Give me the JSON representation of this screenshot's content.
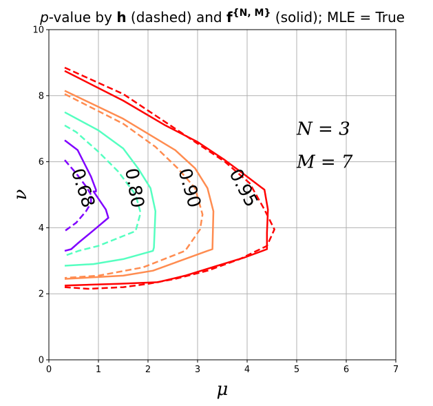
{
  "chart_data": {
    "type": "line",
    "title": {
      "p": "p",
      "middle1": "-value by ",
      "h": "h",
      "middle2": " (dashed) and ",
      "f": "f",
      "sup": "{N, M}",
      "end": " (solid); MLE = True"
    },
    "xlabel": "μ",
    "ylabel": "ν",
    "xlim": [
      0,
      7
    ],
    "ylim": [
      0,
      10
    ],
    "xticks": [
      "0",
      "1",
      "2",
      "3",
      "4",
      "5",
      "6",
      "7"
    ],
    "yticks": [
      "0",
      "2",
      "4",
      "6",
      "8",
      "10"
    ],
    "grid": true,
    "annotations": [
      {
        "text": "N = 3",
        "x": 5.0,
        "y": 7.0
      },
      {
        "text": "M = 7",
        "x": 5.0,
        "y": 6.0
      }
    ],
    "contour_labels": [
      {
        "text": "0.68",
        "x": 0.68,
        "y": 5.2,
        "rot": 72,
        "color": "#8000ff"
      },
      {
        "text": "0.80",
        "x": 1.72,
        "y": 5.2,
        "rot": 80,
        "color": "#55ffc0"
      },
      {
        "text": "0.90",
        "x": 2.83,
        "y": 5.2,
        "rot": 74,
        "color": "#ff8c50"
      },
      {
        "text": "0.95",
        "x": 3.92,
        "y": 5.2,
        "rot": 62,
        "color": "#ff0000"
      }
    ],
    "series": [
      {
        "level": "0.68",
        "style": "solid",
        "color": "#8000ff",
        "points": [
          [
            0.32,
            6.65
          ],
          [
            0.58,
            6.35
          ],
          [
            0.85,
            5.55
          ],
          [
            0.95,
            5.15
          ],
          [
            0.95,
            5.1
          ],
          [
            0.9,
            5.1
          ],
          [
            1.15,
            4.55
          ],
          [
            1.2,
            4.3
          ],
          [
            0.9,
            3.92
          ],
          [
            0.6,
            3.55
          ],
          [
            0.45,
            3.35
          ],
          [
            0.32,
            3.3
          ]
        ]
      },
      {
        "level": "0.68",
        "style": "dashed",
        "color": "#8000ff",
        "points": [
          [
            0.32,
            6.05
          ],
          [
            0.55,
            5.65
          ],
          [
            0.75,
            5.25
          ],
          [
            0.85,
            5.0
          ],
          [
            0.85,
            4.75
          ],
          [
            0.75,
            4.5
          ],
          [
            0.55,
            4.15
          ],
          [
            0.32,
            3.9
          ]
        ]
      },
      {
        "level": "0.80",
        "style": "solid",
        "color": "#55ffc0",
        "points": [
          [
            0.32,
            7.5
          ],
          [
            1.0,
            6.95
          ],
          [
            1.5,
            6.4
          ],
          [
            1.8,
            5.8
          ],
          [
            2.05,
            5.2
          ],
          [
            2.15,
            4.5
          ],
          [
            2.12,
            3.4
          ],
          [
            2.1,
            3.3
          ],
          [
            1.5,
            3.05
          ],
          [
            0.9,
            2.9
          ],
          [
            0.32,
            2.85
          ]
        ]
      },
      {
        "level": "0.80",
        "style": "dashed",
        "color": "#55ffc0",
        "points": [
          [
            0.32,
            7.1
          ],
          [
            0.55,
            6.9
          ],
          [
            1.0,
            6.3
          ],
          [
            1.4,
            5.7
          ],
          [
            1.75,
            5.0
          ],
          [
            1.85,
            4.45
          ],
          [
            1.75,
            3.9
          ],
          [
            1.5,
            3.75
          ],
          [
            1.0,
            3.45
          ],
          [
            0.6,
            3.3
          ],
          [
            0.32,
            3.15
          ]
        ]
      },
      {
        "level": "0.90",
        "style": "solid",
        "color": "#ff8c50",
        "points": [
          [
            0.32,
            8.15
          ],
          [
            1.5,
            7.3
          ],
          [
            2.55,
            6.35
          ],
          [
            2.95,
            5.8
          ],
          [
            3.2,
            5.2
          ],
          [
            3.32,
            4.5
          ],
          [
            3.3,
            3.35
          ],
          [
            3.2,
            3.3
          ],
          [
            2.1,
            2.7
          ],
          [
            1.5,
            2.55
          ],
          [
            0.32,
            2.45
          ]
        ]
      },
      {
        "level": "0.90",
        "style": "dashed",
        "color": "#ff8c50",
        "points": [
          [
            0.32,
            8.05
          ],
          [
            1.5,
            7.15
          ],
          [
            2.15,
            6.45
          ],
          [
            2.6,
            5.8
          ],
          [
            2.95,
            5.2
          ],
          [
            3.1,
            4.4
          ],
          [
            3.05,
            3.95
          ],
          [
            2.75,
            3.3
          ],
          [
            1.9,
            2.8
          ],
          [
            1.0,
            2.55
          ],
          [
            0.32,
            2.48
          ]
        ]
      },
      {
        "level": "0.95",
        "style": "solid",
        "color": "#ff0000",
        "points": [
          [
            0.32,
            8.75
          ],
          [
            1.5,
            7.85
          ],
          [
            2.35,
            7.1
          ],
          [
            3.0,
            6.6
          ],
          [
            3.55,
            6.05
          ],
          [
            4.0,
            5.55
          ],
          [
            4.35,
            5.15
          ],
          [
            4.42,
            4.55
          ],
          [
            4.4,
            3.85
          ],
          [
            4.4,
            3.35
          ],
          [
            3.95,
            3.1
          ],
          [
            3.4,
            2.85
          ],
          [
            2.75,
            2.55
          ],
          [
            2.2,
            2.35
          ],
          [
            1.4,
            2.3
          ],
          [
            0.32,
            2.25
          ]
        ]
      },
      {
        "level": "0.95",
        "style": "dashed",
        "color": "#ff0000",
        "points": [
          [
            0.32,
            8.85
          ],
          [
            1.5,
            8.05
          ],
          [
            2.3,
            7.25
          ],
          [
            3.0,
            6.55
          ],
          [
            3.55,
            6.0
          ],
          [
            4.05,
            5.35
          ],
          [
            4.35,
            4.55
          ],
          [
            4.55,
            3.95
          ],
          [
            4.4,
            3.45
          ],
          [
            3.85,
            3.05
          ],
          [
            3.2,
            2.7
          ],
          [
            2.55,
            2.45
          ],
          [
            2.0,
            2.3
          ],
          [
            1.5,
            2.2
          ],
          [
            0.8,
            2.15
          ],
          [
            0.32,
            2.2
          ]
        ]
      }
    ]
  }
}
